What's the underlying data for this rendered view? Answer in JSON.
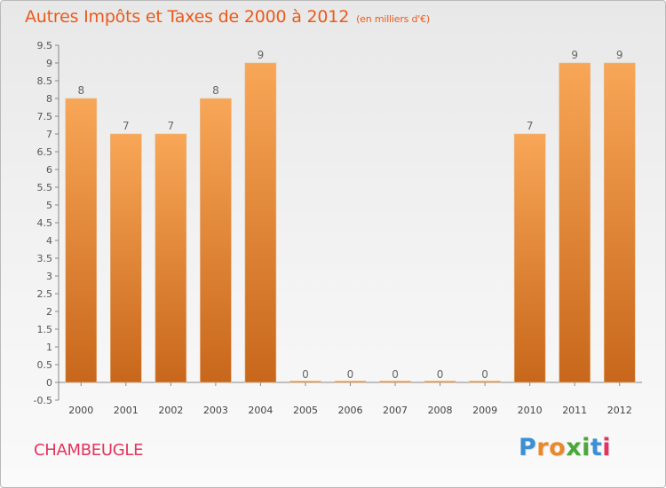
{
  "header": {
    "title": "Autres Impôts et Taxes de 2000 à 2012",
    "subtitle": "(en milliers d'€)"
  },
  "footer": {
    "commune": "CHAMBEUGLE",
    "logo_text": "Proxiti",
    "logo_letters": [
      {
        "ch": "P",
        "color": "#3b8fd4"
      },
      {
        "ch": "r",
        "color": "#e8892b"
      },
      {
        "ch": "o",
        "color": "#e8892b"
      },
      {
        "ch": "x",
        "color": "#4aa838"
      },
      {
        "ch": "i",
        "color": "#4aa838"
      },
      {
        "ch": "t",
        "color": "#3b8fd4"
      },
      {
        "ch": "i",
        "color": "#e4335e"
      }
    ]
  },
  "colors": {
    "bar_light": "#f8a657",
    "bar_dark": "#c8671b",
    "title": "#ea5a1a",
    "commune": "#e4335e"
  },
  "chart_data": {
    "type": "bar",
    "title": "Autres Impôts et Taxes de 2000 à 2012",
    "subtitle": "(en milliers d'€)",
    "categories": [
      "2000",
      "2001",
      "2002",
      "2003",
      "2004",
      "2005",
      "2006",
      "2007",
      "2008",
      "2009",
      "2010",
      "2011",
      "2012"
    ],
    "values": [
      8,
      7,
      7,
      8,
      9,
      0,
      0,
      0,
      0,
      0,
      7,
      9,
      9
    ],
    "data_labels": [
      "8",
      "7",
      "7",
      "8",
      "9",
      "0",
      "0",
      "0",
      "0",
      "0",
      "7",
      "9",
      "9"
    ],
    "yticks": [
      "-0.5",
      "0",
      "0.5",
      "1",
      "1.5",
      "2",
      "2.5",
      "3",
      "3.5",
      "4",
      "4.5",
      "5",
      "5.5",
      "6",
      "6.5",
      "7",
      "7.5",
      "8",
      "8.5",
      "9",
      "9.5"
    ],
    "ylim": [
      -0.5,
      9.5
    ],
    "grid": false,
    "legend": "none"
  }
}
